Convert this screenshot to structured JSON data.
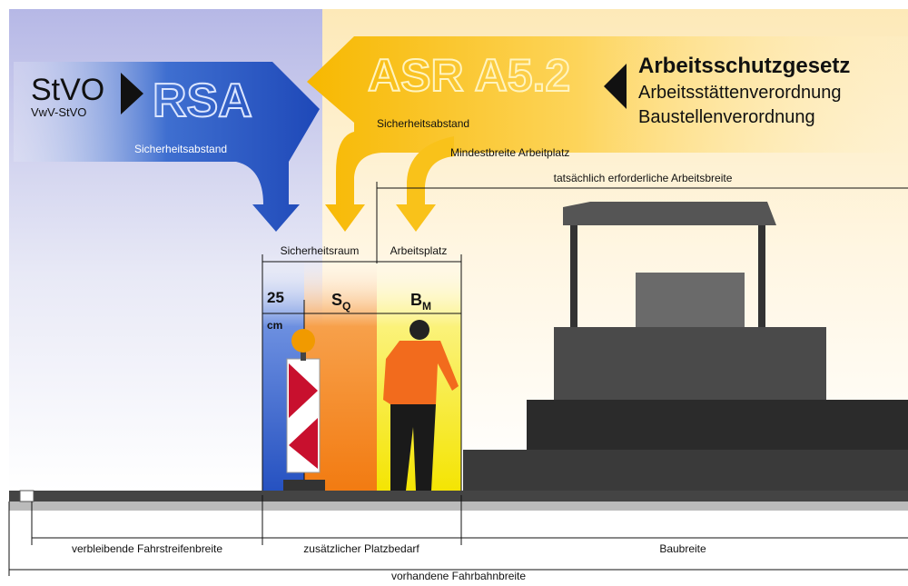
{
  "header": {
    "stvo": "StVO",
    "vwv": "VwV-StVO",
    "rsa": "RSA",
    "asr": "ASR A5.2",
    "laws": [
      "Arbeitsschutzgesetz",
      "Arbeitsstättenverordnung",
      "Baustellenverordnung"
    ]
  },
  "arrows": {
    "rsa_distance": "Sicherheitsabstand",
    "asr_distance": "Sicherheitsabstand",
    "min_width": "Mindestbreite Arbeitplatz"
  },
  "zones": {
    "safety_room": "Sicherheitsraum",
    "workplace": "Arbeitsplatz",
    "gap_value": "25",
    "gap_unit": "cm",
    "sq": {
      "base": "S",
      "sub": "Q"
    },
    "bm": {
      "base": "B",
      "sub": "M"
    }
  },
  "dimensions": {
    "required_width": "tatsächlich erforderliche Arbeitsbreite",
    "remaining": "verbleibende Fahrstreifenbreite",
    "additional": "zusätzlicher Platzbedarf",
    "construction": "Baubreite",
    "available": "vorhandene Fahrbahnbreite"
  }
}
